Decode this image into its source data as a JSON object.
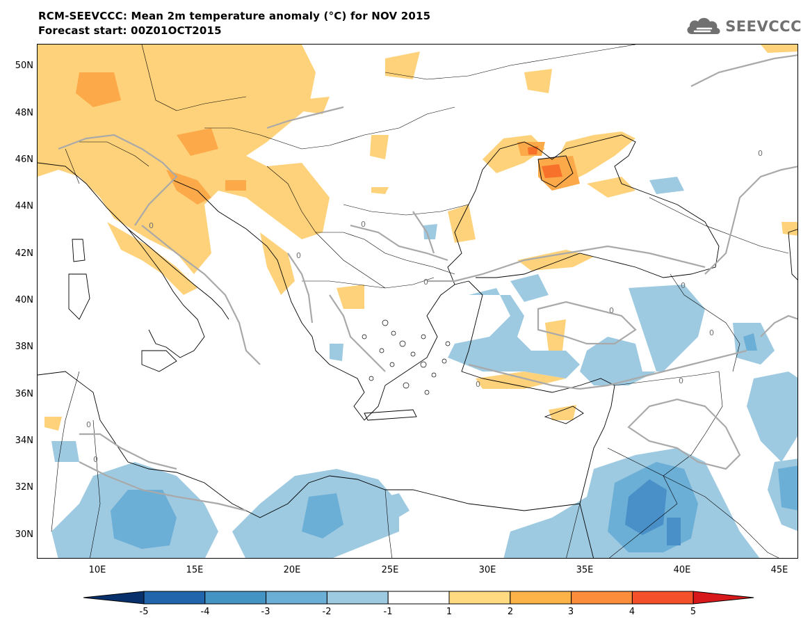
{
  "title": {
    "line1": "RCM-SEEVCCC: Mean 2m temperature anomaly (°C) for NOV 2015",
    "line2": "Forecast start: 00Z01OCT2015"
  },
  "logo": {
    "text": "SEEVCCC",
    "icon": "cloud-icon"
  },
  "map": {
    "lat_labels": [
      "50N",
      "48N",
      "46N",
      "44N",
      "42N",
      "40N",
      "38N",
      "36N",
      "34N",
      "32N",
      "30N"
    ],
    "lon_labels": [
      "10E",
      "15E",
      "20E",
      "25E",
      "30E",
      "35E",
      "40E",
      "45E"
    ],
    "contour_label": "0"
  },
  "colorbar": {
    "labels": [
      "-5",
      "-4",
      "-3",
      "-2",
      "-1",
      "1",
      "2",
      "3",
      "4",
      "5"
    ],
    "colors": [
      "#08306b",
      "#2166ac",
      "#4393c3",
      "#6baed6",
      "#9ecae1",
      "#ffffff",
      "#ffda80",
      "#fdb347",
      "#fc8d3c",
      "#f4502a",
      "#d7191c"
    ]
  },
  "colors": {
    "warm1": "#fed27a",
    "warm2": "#fca94a",
    "warm3": "#f8712b",
    "cold1": "#9ecae1",
    "cold2": "#6baed6",
    "cold3": "#4a90c8",
    "contour": "#a9a9a9"
  }
}
